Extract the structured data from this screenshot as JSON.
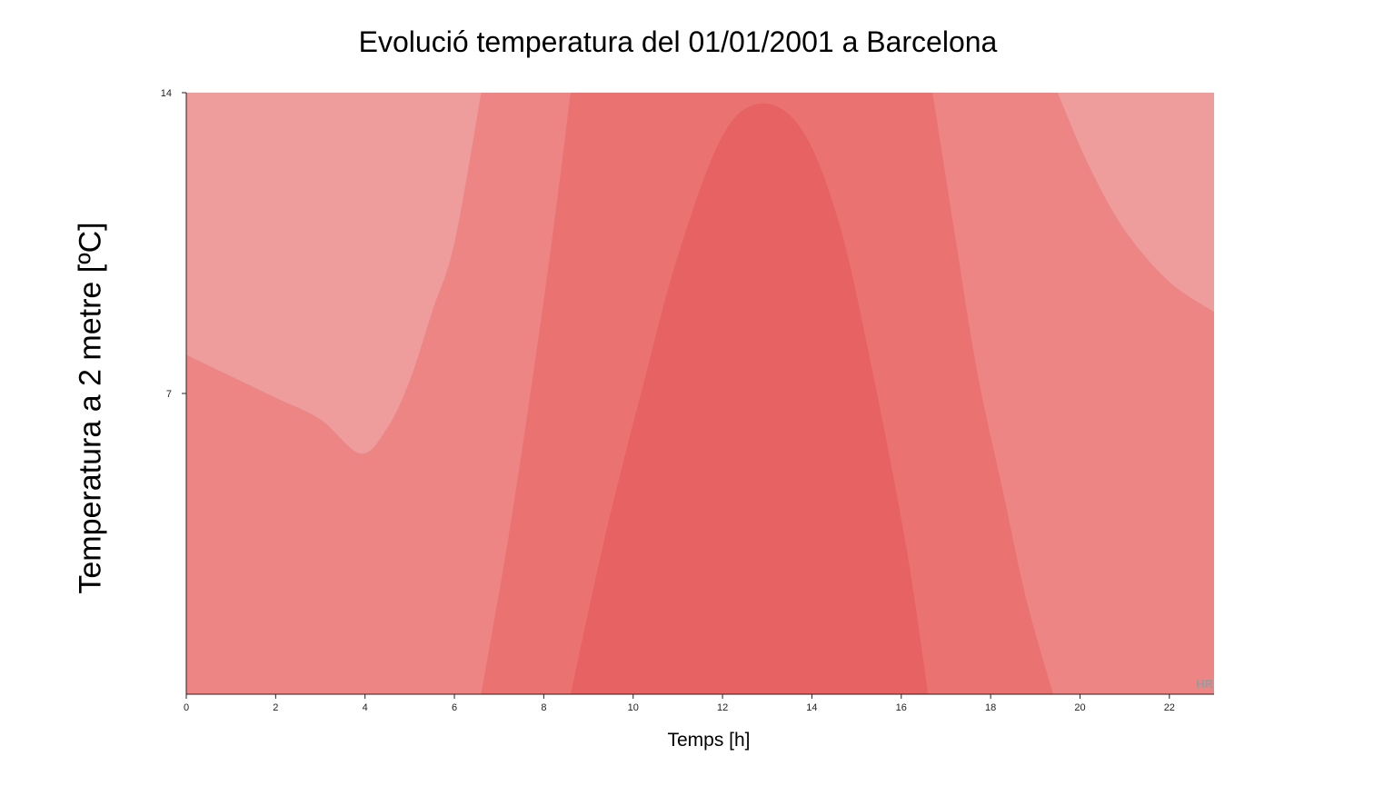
{
  "chart_data": {
    "type": "area",
    "title": "Evolució temperatura del 01/01/2001 a Barcelona",
    "xlabel": "Temps [h]",
    "ylabel": "Temperatura a 2 metre [ºC]",
    "xlim": [
      0,
      23
    ],
    "ylim": [
      0,
      14
    ],
    "x_ticks": [
      "0",
      "2",
      "4",
      "6",
      "8",
      "10",
      "12",
      "14",
      "16",
      "18",
      "20",
      "22"
    ],
    "y_ticks": [
      "7",
      "14"
    ],
    "watermark": "HR",
    "colors": {
      "band_light": "#ef9c9c",
      "band_mid": "#ed8585",
      "band_strong": "#ea7372",
      "band_peak": "#e76262"
    },
    "bands": [
      {
        "level": "light",
        "color": "#ef9c9c",
        "boundary": [
          [
            0,
            7.9
          ],
          [
            1,
            7.4
          ],
          [
            2,
            6.9
          ],
          [
            3,
            6.4
          ],
          [
            3.9,
            5.6
          ],
          [
            4.5,
            6.2
          ],
          [
            5,
            7.3
          ],
          [
            5.5,
            8.9
          ],
          [
            6,
            10.5
          ],
          [
            6.6,
            14
          ]
        ]
      },
      {
        "level": "mid",
        "color": "#ed8585",
        "boundary": [
          [
            6.6,
            0
          ],
          [
            7.2,
            3.6
          ],
          [
            7.7,
            7.0
          ],
          [
            8.2,
            10.7
          ],
          [
            8.6,
            14
          ]
        ]
      },
      {
        "level": "strong",
        "color": "#ea7372",
        "boundary": [
          [
            8.6,
            0
          ],
          [
            9.4,
            3.8
          ],
          [
            10.2,
            7.1
          ],
          [
            11.0,
            10.2
          ],
          [
            12.0,
            13.0
          ],
          [
            12.9,
            13.75
          ],
          [
            13.8,
            13.1
          ],
          [
            14.6,
            11.0
          ],
          [
            15.3,
            7.8
          ],
          [
            16.1,
            3.5
          ],
          [
            16.6,
            0
          ]
        ]
      },
      {
        "level": "strong",
        "color": "#ea7372",
        "boundary": [
          [
            16.7,
            14
          ],
          [
            17.2,
            10.7
          ],
          [
            17.7,
            7.5
          ],
          [
            18.3,
            4.6
          ],
          [
            18.8,
            2.2
          ],
          [
            19.4,
            0
          ]
        ]
      },
      {
        "level": "light",
        "color": "#ef9c9c",
        "boundary": [
          [
            19.5,
            14
          ],
          [
            20.2,
            12.3
          ],
          [
            21.0,
            10.8
          ],
          [
            22.0,
            9.6
          ],
          [
            23.0,
            8.9
          ]
        ]
      }
    ]
  }
}
